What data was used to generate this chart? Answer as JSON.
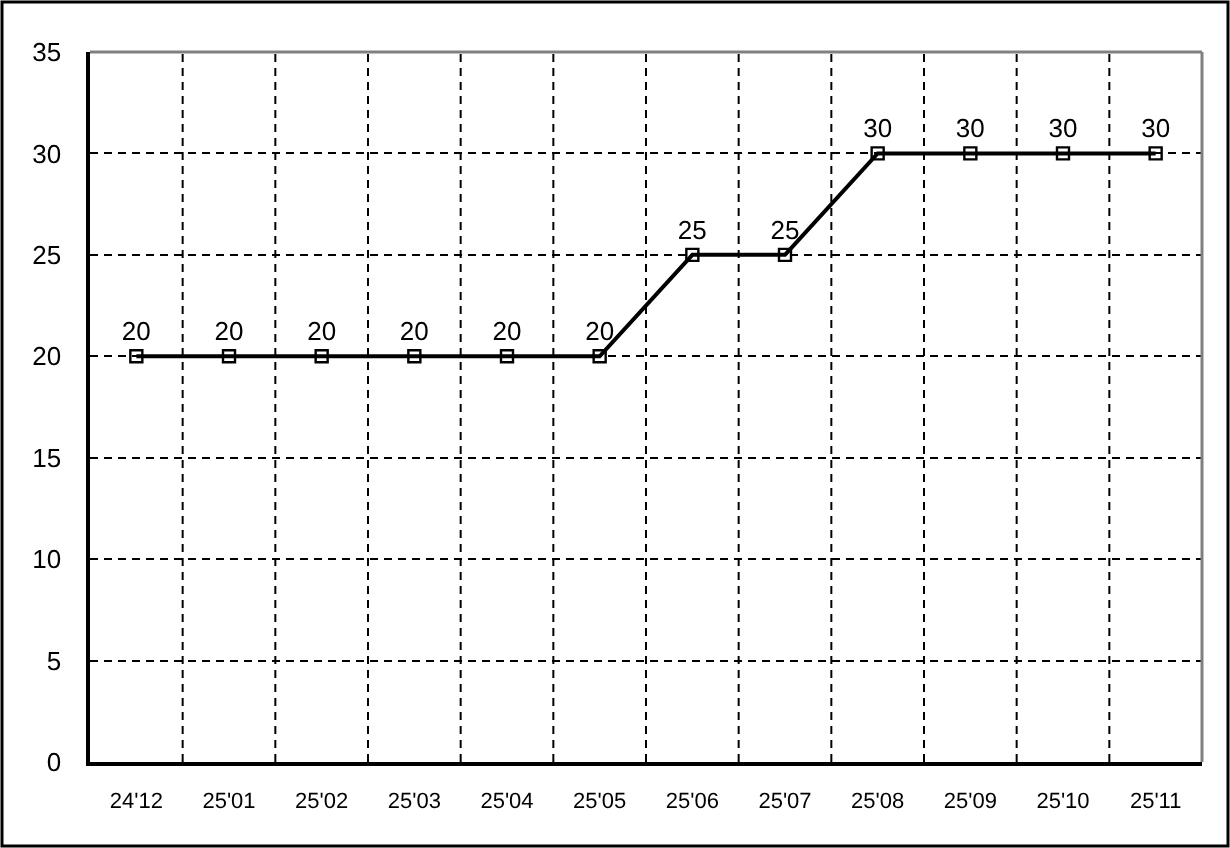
{
  "chart_data": {
    "type": "line",
    "categories": [
      "24'12",
      "25'01",
      "25'02",
      "25'03",
      "25'04",
      "25'05",
      "25'06",
      "25'07",
      "25'08",
      "25'09",
      "25'10",
      "25'11"
    ],
    "values": [
      20,
      20,
      20,
      20,
      20,
      20,
      25,
      25,
      30,
      30,
      30,
      30
    ],
    "color": "#000000",
    "ylim": [
      0,
      35
    ],
    "yticks": [
      0,
      5,
      10,
      15,
      20,
      25,
      30,
      35
    ],
    "grid": true,
    "marker": "square",
    "line_style": "solid",
    "data_labels": true
  }
}
